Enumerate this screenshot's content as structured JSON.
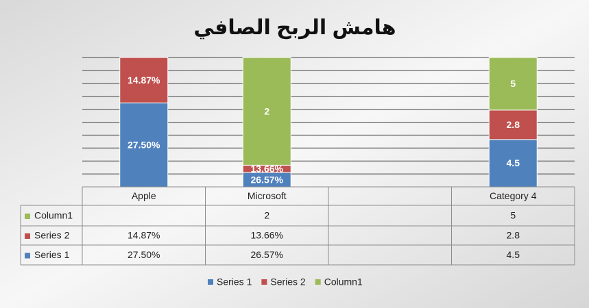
{
  "chart_data": {
    "type": "stacked_bar_100",
    "title": "هامش الربح الصافي",
    "categories": [
      "Apple",
      "Microsoft",
      null,
      "Category 4"
    ],
    "series": [
      {
        "name": "Series 1",
        "color": "#4f81bd",
        "values": [
          0.275,
          0.2657,
          null,
          4.5
        ],
        "value_labels": [
          "27.50%",
          "26.57%",
          null,
          "4.5"
        ]
      },
      {
        "name": "Series 2",
        "color": "#c0504d",
        "values": [
          0.1487,
          0.1366,
          null,
          2.8
        ],
        "value_labels": [
          "14.87%",
          "13.66%",
          null,
          "2.8"
        ]
      },
      {
        "name": "Column1",
        "color": "#9bbb59",
        "values": [
          null,
          2,
          null,
          5
        ]
      }
    ],
    "grid": true
  }
}
